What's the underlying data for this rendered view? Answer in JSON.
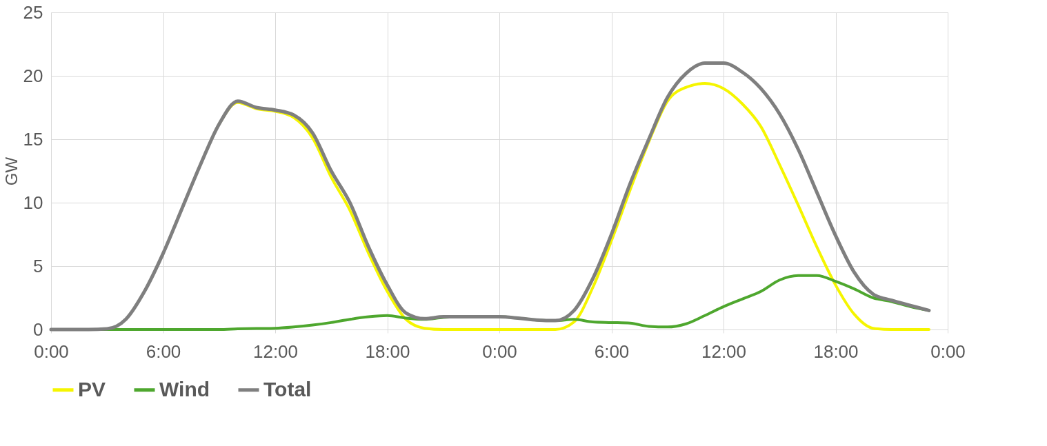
{
  "chart_data": {
    "type": "line",
    "ylabel": "GW",
    "categories": [
      "0:00",
      null,
      null,
      null,
      null,
      null,
      "6:00",
      null,
      null,
      null,
      null,
      null,
      "12:00",
      null,
      null,
      null,
      null,
      null,
      "18:00",
      null,
      null,
      null,
      null,
      null,
      "0:00",
      null,
      null,
      null,
      null,
      null,
      "6:00",
      null,
      null,
      null,
      null,
      null,
      "12:00",
      null,
      null,
      null,
      null,
      null,
      "18:00",
      null,
      null,
      null,
      null,
      null,
      "0:00"
    ],
    "series": [
      {
        "name": "PV",
        "color": "#f5f500",
        "values": [
          null,
          null,
          null,
          null,
          null,
          null,
          null,
          null,
          null,
          16.2,
          17.9,
          17.4,
          17.2,
          16.7,
          15.1,
          12,
          9.4,
          6,
          3,
          0.8,
          0.1,
          0,
          0,
          0,
          0,
          0,
          0,
          0,
          0.6,
          3.3,
          7,
          11,
          14.8,
          18,
          19.1,
          19.4,
          19,
          17.8,
          16,
          13,
          9.8,
          6.5,
          3.5,
          1.2,
          0.1,
          0,
          0,
          0,
          null
        ]
      },
      {
        "name": "Wind",
        "color": "#4ea72e",
        "values": [
          null,
          null,
          0,
          0,
          0,
          0,
          0,
          0,
          0,
          0,
          0.05,
          0.08,
          0.1,
          0.2,
          0.35,
          0.55,
          0.8,
          1,
          1.1,
          0.9,
          0.8,
          0.95,
          1,
          1,
          1,
          0.9,
          0.75,
          0.7,
          0.8,
          0.6,
          0.55,
          0.5,
          0.25,
          0.2,
          0.45,
          1.1,
          1.8,
          2.4,
          3,
          3.9,
          4.25,
          4.25,
          3.8,
          3.2,
          2.5,
          2.2,
          1.8,
          1.5,
          null
        ]
      },
      {
        "name": "Total",
        "color": "#7f7f7f",
        "values": [
          0,
          0,
          0,
          0.05,
          0.8,
          3,
          6,
          9.5,
          13,
          16.2,
          18,
          17.5,
          17.3,
          16.9,
          15.5,
          12.5,
          10,
          6.5,
          3.5,
          1.3,
          0.85,
          1,
          1,
          1,
          1,
          0.9,
          0.75,
          0.7,
          1.5,
          4,
          7.5,
          11.5,
          15,
          18.3,
          20.2,
          21,
          21,
          20.3,
          19,
          17,
          14.2,
          10.8,
          7.4,
          4.5,
          2.8,
          2.3,
          1.9,
          1.5,
          null
        ]
      }
    ],
    "ylim": [
      0,
      25
    ],
    "yticks": [
      0,
      5,
      10,
      15,
      20,
      25
    ],
    "grid": true,
    "legend": "bottom",
    "line_style": "solid",
    "marker": "none"
  }
}
